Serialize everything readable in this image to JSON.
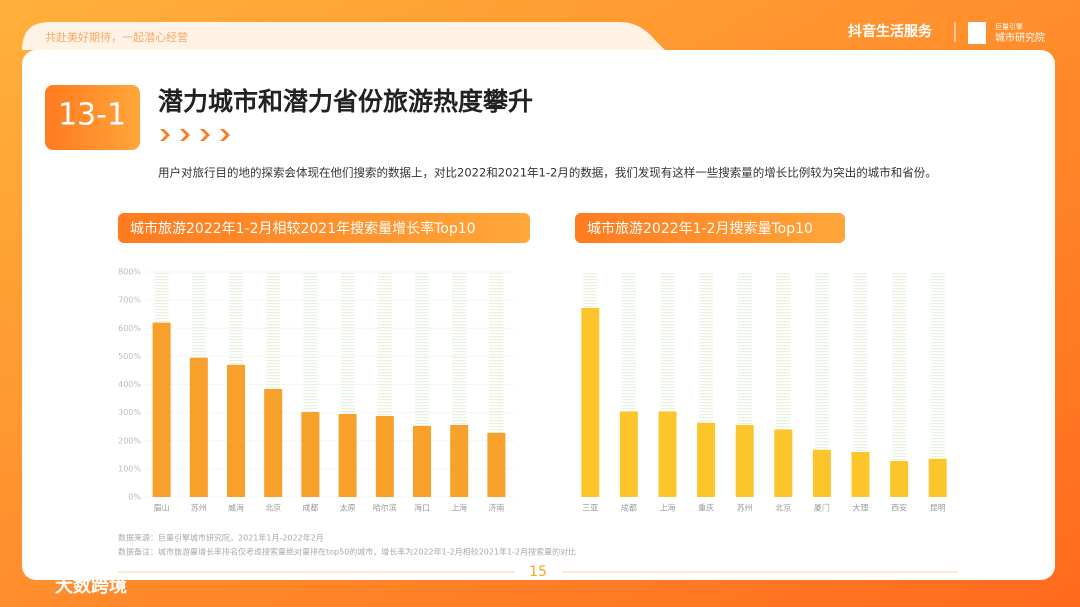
{
  "header": {
    "slogan": "共赴美好期待，一起潜心经营",
    "brand": "抖音生活服务",
    "institute_top": "巨量引擎",
    "institute": "城市研究院"
  },
  "badge": "13-1",
  "title": "潜力城市和潜力省份旅游热度攀升",
  "description": "用户对旅行目的地的探索会体现在他们搜索的数据上，对比2022和2021年1-2月的数据，我们发现有这样一些搜索量的增长比例较为突出的城市和省份。",
  "chart_data": [
    {
      "type": "bar",
      "title": "城市旅游2022年1-2月相较2021年搜索量增长率Top10",
      "categories": [
        "眉山",
        "苏州",
        "威海",
        "北京",
        "成都",
        "太原",
        "哈尔滨",
        "海口",
        "上海",
        "济南"
      ],
      "values": [
        620,
        495,
        470,
        384,
        302,
        295,
        288,
        253,
        256,
        228
      ],
      "color": "#f7a02a",
      "ylim": [
        0,
        800
      ],
      "yticks": [
        {
          "value": 0,
          "label": "0%"
        },
        {
          "value": 100,
          "label": "100%"
        },
        {
          "value": 200,
          "label": "200%"
        },
        {
          "value": 300,
          "label": "300%"
        },
        {
          "value": 400,
          "label": "400%"
        },
        {
          "value": 500,
          "label": "500%"
        },
        {
          "value": 600,
          "label": "600%"
        },
        {
          "value": 700,
          "label": "700%"
        },
        {
          "value": 800,
          "label": "800%"
        }
      ]
    },
    {
      "type": "bar",
      "title": "城市旅游2022年1-2月搜索量Top10",
      "categories": [
        "三亚",
        "成都",
        "上海",
        "重庆",
        "苏州",
        "北京",
        "厦门",
        "大理",
        "西安",
        "昆明"
      ],
      "values": [
        84,
        38,
        38,
        33,
        32,
        30,
        21,
        20,
        16,
        17
      ],
      "color": "#fcc52c",
      "ylim": [
        0,
        100
      ]
    }
  ],
  "notes": [
    "数据来源：巨量引擎城市研究院，2021年1月-2022年2月",
    "数据备注：城市旅游量增长率排名仅考虑搜索量绝对量排在top50的城市，增长率为2022年1-2月相较2021年1-2月搜索量的对比"
  ],
  "page_number": "15",
  "watermark": "大数跨境"
}
